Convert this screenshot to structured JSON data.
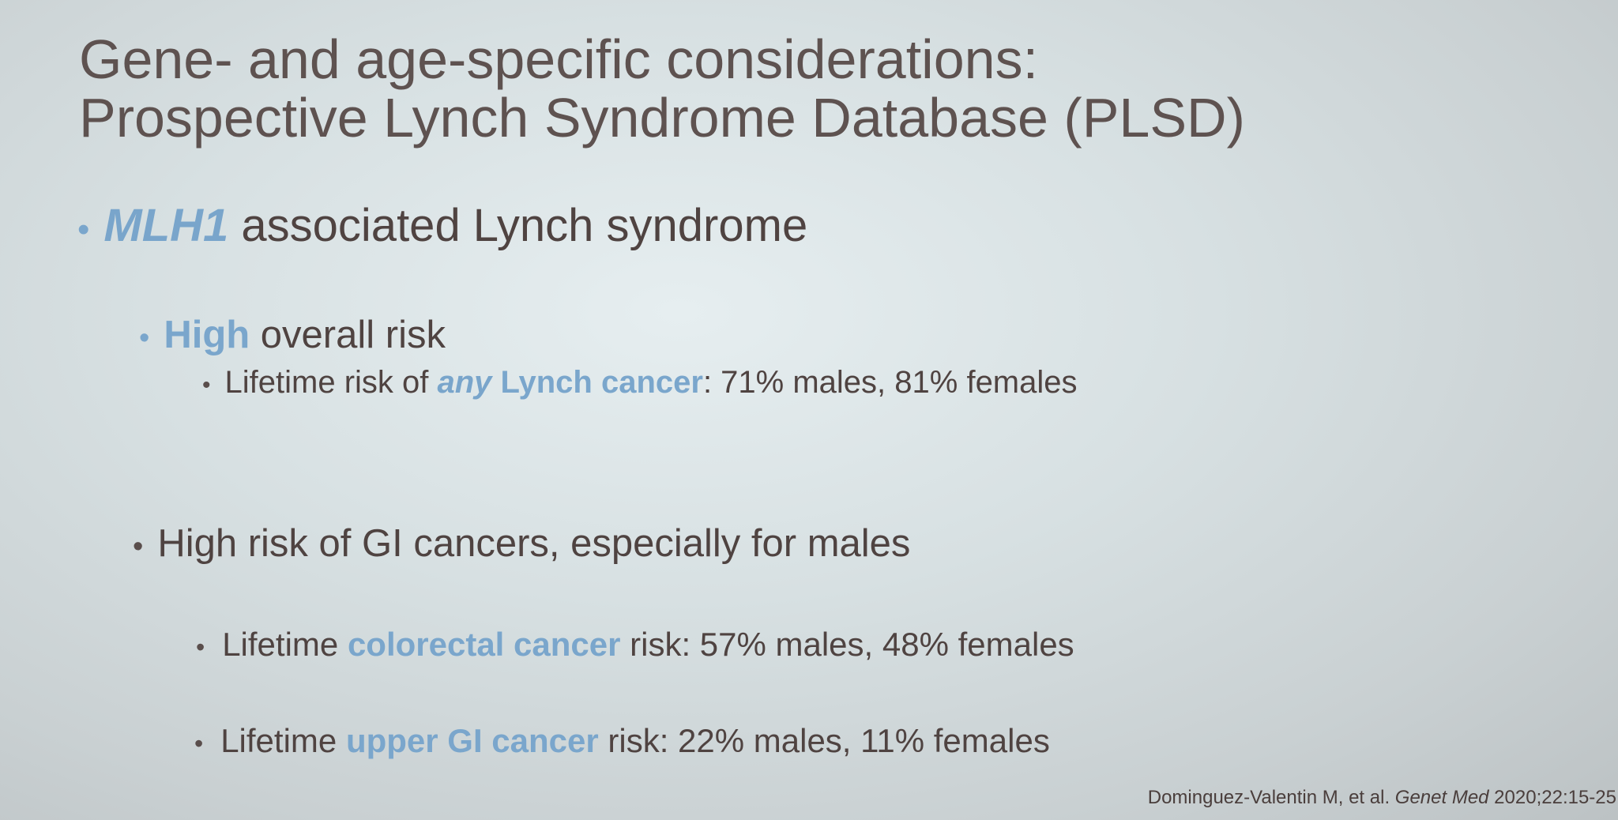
{
  "slide": {
    "title_line1": "Gene- and age-specific considerations:",
    "title_line2": "Prospective Lynch Syndrome Database (PLSD)",
    "bullets": {
      "b1": {
        "marker": "•",
        "gene": "MLH1",
        "rest": " associated Lynch syndrome"
      },
      "b2": {
        "marker": "•",
        "emph": "High",
        "rest": " overall risk"
      },
      "b3": {
        "marker": "•",
        "pre": "Lifetime risk of ",
        "emph_italic": "any",
        "emph": " Lynch cancer",
        "rest": ": 71% males, 81% females"
      },
      "b4": {
        "marker": "•",
        "text": "High risk of GI cancers, especially for males"
      },
      "b5": {
        "marker": "•",
        "pre": "Lifetime ",
        "emph": "colorectal cancer",
        "rest": " risk: 57% males, 48% females"
      },
      "b6": {
        "marker": "•",
        "pre": "Lifetime ",
        "emph": "upper GI cancer",
        "rest": " risk: 22% males, 11% females"
      }
    },
    "citation": {
      "authors": "Dominguez-Valentin M, et al. ",
      "journal": "Genet Med",
      "details": " 2020;22:15-25"
    }
  },
  "colors": {
    "accent_blue": "#7aa6cc",
    "text": "#4f4341",
    "title": "#5e5250"
  }
}
